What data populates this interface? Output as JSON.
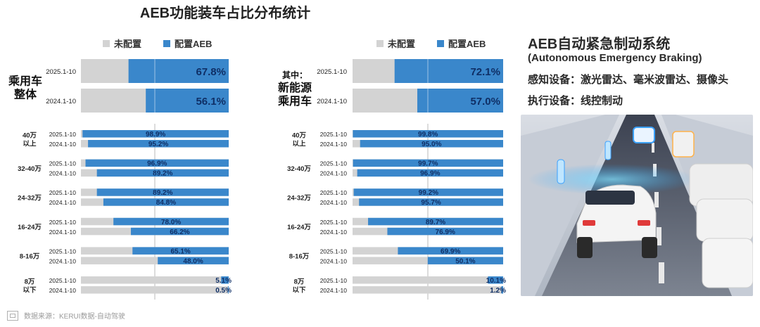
{
  "title": "AEB功能装车占比分布统计",
  "legend": {
    "unconfigured": "未配置",
    "configured": "配置AEB"
  },
  "colors": {
    "unconfigured": "#D3D3D3",
    "configured": "#3A87CB",
    "text_on_bar": "#0F2F66",
    "label": "#222222"
  },
  "right": {
    "title": "AEB自动紧急制动系统",
    "subtitle": "(Autonomous Emergency Braking)",
    "sensing": "感知设备：激光雷达、毫米波雷达、摄像头",
    "actuation": "执行设备：线控制动"
  },
  "footer": {
    "source": "数据来源：KERUI数据-自动驾驶"
  },
  "chart_data": [
    {
      "type": "bar",
      "name_lines": [
        "乘用车",
        "整体"
      ],
      "top": {
        "rows": [
          {
            "period": "2025.1-10",
            "value": 67.8,
            "label": "67.8%"
          },
          {
            "period": "2024.1-10",
            "value": 56.1,
            "label": "56.1%"
          }
        ]
      },
      "groups": [
        {
          "name_lines": [
            "40万",
            "以上"
          ],
          "rows": [
            {
              "period": "2025.1-10",
              "value": 98.9,
              "label": "98.9%"
            },
            {
              "period": "2024.1-10",
              "value": 95.2,
              "label": "95.2%"
            }
          ]
        },
        {
          "name_lines": [
            "32-40万"
          ],
          "rows": [
            {
              "period": "2025.1-10",
              "value": 96.9,
              "label": "96.9%"
            },
            {
              "period": "2024.1-10",
              "value": 89.2,
              "label": "89.2%"
            }
          ]
        },
        {
          "name_lines": [
            "24-32万"
          ],
          "rows": [
            {
              "period": "2025.1-10",
              "value": 89.2,
              "label": "89.2%"
            },
            {
              "period": "2024.1-10",
              "value": 84.8,
              "label": "84.8%"
            }
          ]
        },
        {
          "name_lines": [
            "16-24万"
          ],
          "rows": [
            {
              "period": "2025.1-10",
              "value": 78.0,
              "label": "78.0%"
            },
            {
              "period": "2024.1-10",
              "value": 66.2,
              "label": "66.2%"
            }
          ]
        },
        {
          "name_lines": [
            "8-16万"
          ],
          "rows": [
            {
              "period": "2025.1-10",
              "value": 65.1,
              "label": "65.1%"
            },
            {
              "period": "2024.1-10",
              "value": 48.0,
              "label": "48.0%"
            }
          ]
        },
        {
          "name_lines": [
            "8万",
            "以下"
          ],
          "rows": [
            {
              "period": "2025.1-10",
              "value": 5.1,
              "label": "5.1%"
            },
            {
              "period": "2024.1-10",
              "value": 0.5,
              "label": "0.5%"
            }
          ]
        }
      ]
    },
    {
      "type": "bar",
      "name_lines": [
        "其中：",
        "新能源",
        "乘用车"
      ],
      "top": {
        "rows": [
          {
            "period": "2025.1-10",
            "value": 72.1,
            "label": "72.1%"
          },
          {
            "period": "2024.1-10",
            "value": 57.0,
            "label": "57.0%"
          }
        ]
      },
      "groups": [
        {
          "name_lines": [
            "40万",
            "以上"
          ],
          "rows": [
            {
              "period": "2025.1-10",
              "value": 99.8,
              "label": "99.8%"
            },
            {
              "period": "2024.1-10",
              "value": 95.0,
              "label": "95.0%"
            }
          ]
        },
        {
          "name_lines": [
            "32-40万"
          ],
          "rows": [
            {
              "period": "2025.1-10",
              "value": 99.7,
              "label": "99.7%"
            },
            {
              "period": "2024.1-10",
              "value": 96.9,
              "label": "96.9%"
            }
          ]
        },
        {
          "name_lines": [
            "24-32万"
          ],
          "rows": [
            {
              "period": "2025.1-10",
              "value": 99.2,
              "label": "99.2%"
            },
            {
              "period": "2024.1-10",
              "value": 95.7,
              "label": "95.7%"
            }
          ]
        },
        {
          "name_lines": [
            "16-24万"
          ],
          "rows": [
            {
              "period": "2025.1-10",
              "value": 89.7,
              "label": "89.7%"
            },
            {
              "period": "2024.1-10",
              "value": 76.9,
              "label": "76.9%"
            }
          ]
        },
        {
          "name_lines": [
            "8-16万"
          ],
          "rows": [
            {
              "period": "2025.1-10",
              "value": 69.9,
              "label": "69.9%"
            },
            {
              "period": "2024.1-10",
              "value": 50.1,
              "label": "50.1%"
            }
          ]
        },
        {
          "name_lines": [
            "8万",
            "以下"
          ],
          "rows": [
            {
              "period": "2025.1-10",
              "value": 10.1,
              "label": "10.1%"
            },
            {
              "period": "2024.1-10",
              "value": 1.2,
              "label": "1.2%"
            }
          ]
        }
      ]
    }
  ]
}
